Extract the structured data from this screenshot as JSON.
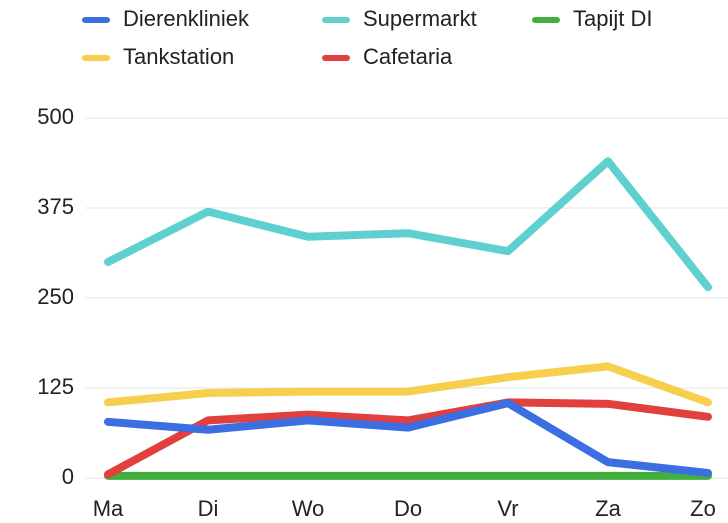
{
  "chart_data": {
    "type": "line",
    "categories": [
      "Ma",
      "Di",
      "Wo",
      "Do",
      "Vr",
      "Za",
      "Zo"
    ],
    "series": [
      {
        "name": "Dierenkliniek",
        "color": "#3b6ee0",
        "values": [
          78,
          67,
          80,
          70,
          104,
          22,
          7
        ]
      },
      {
        "name": "Supermarkt",
        "color": "#5fd0d0",
        "values": [
          300,
          370,
          335,
          340,
          315,
          440,
          265
        ]
      },
      {
        "name": "Tapijt DI",
        "color": "#42ae3e",
        "values": [
          3,
          3,
          3,
          3,
          3,
          3,
          3
        ]
      },
      {
        "name": "Tankstation",
        "color": "#f6d04c",
        "values": [
          105,
          118,
          120,
          120,
          140,
          155,
          105
        ]
      },
      {
        "name": "Cafetaria",
        "color": "#e2403f",
        "values": [
          5,
          80,
          88,
          80,
          105,
          103,
          85
        ]
      }
    ],
    "ylim": [
      0,
      500
    ],
    "yticks": [
      0,
      125,
      250,
      375,
      500
    ],
    "grid": true
  }
}
